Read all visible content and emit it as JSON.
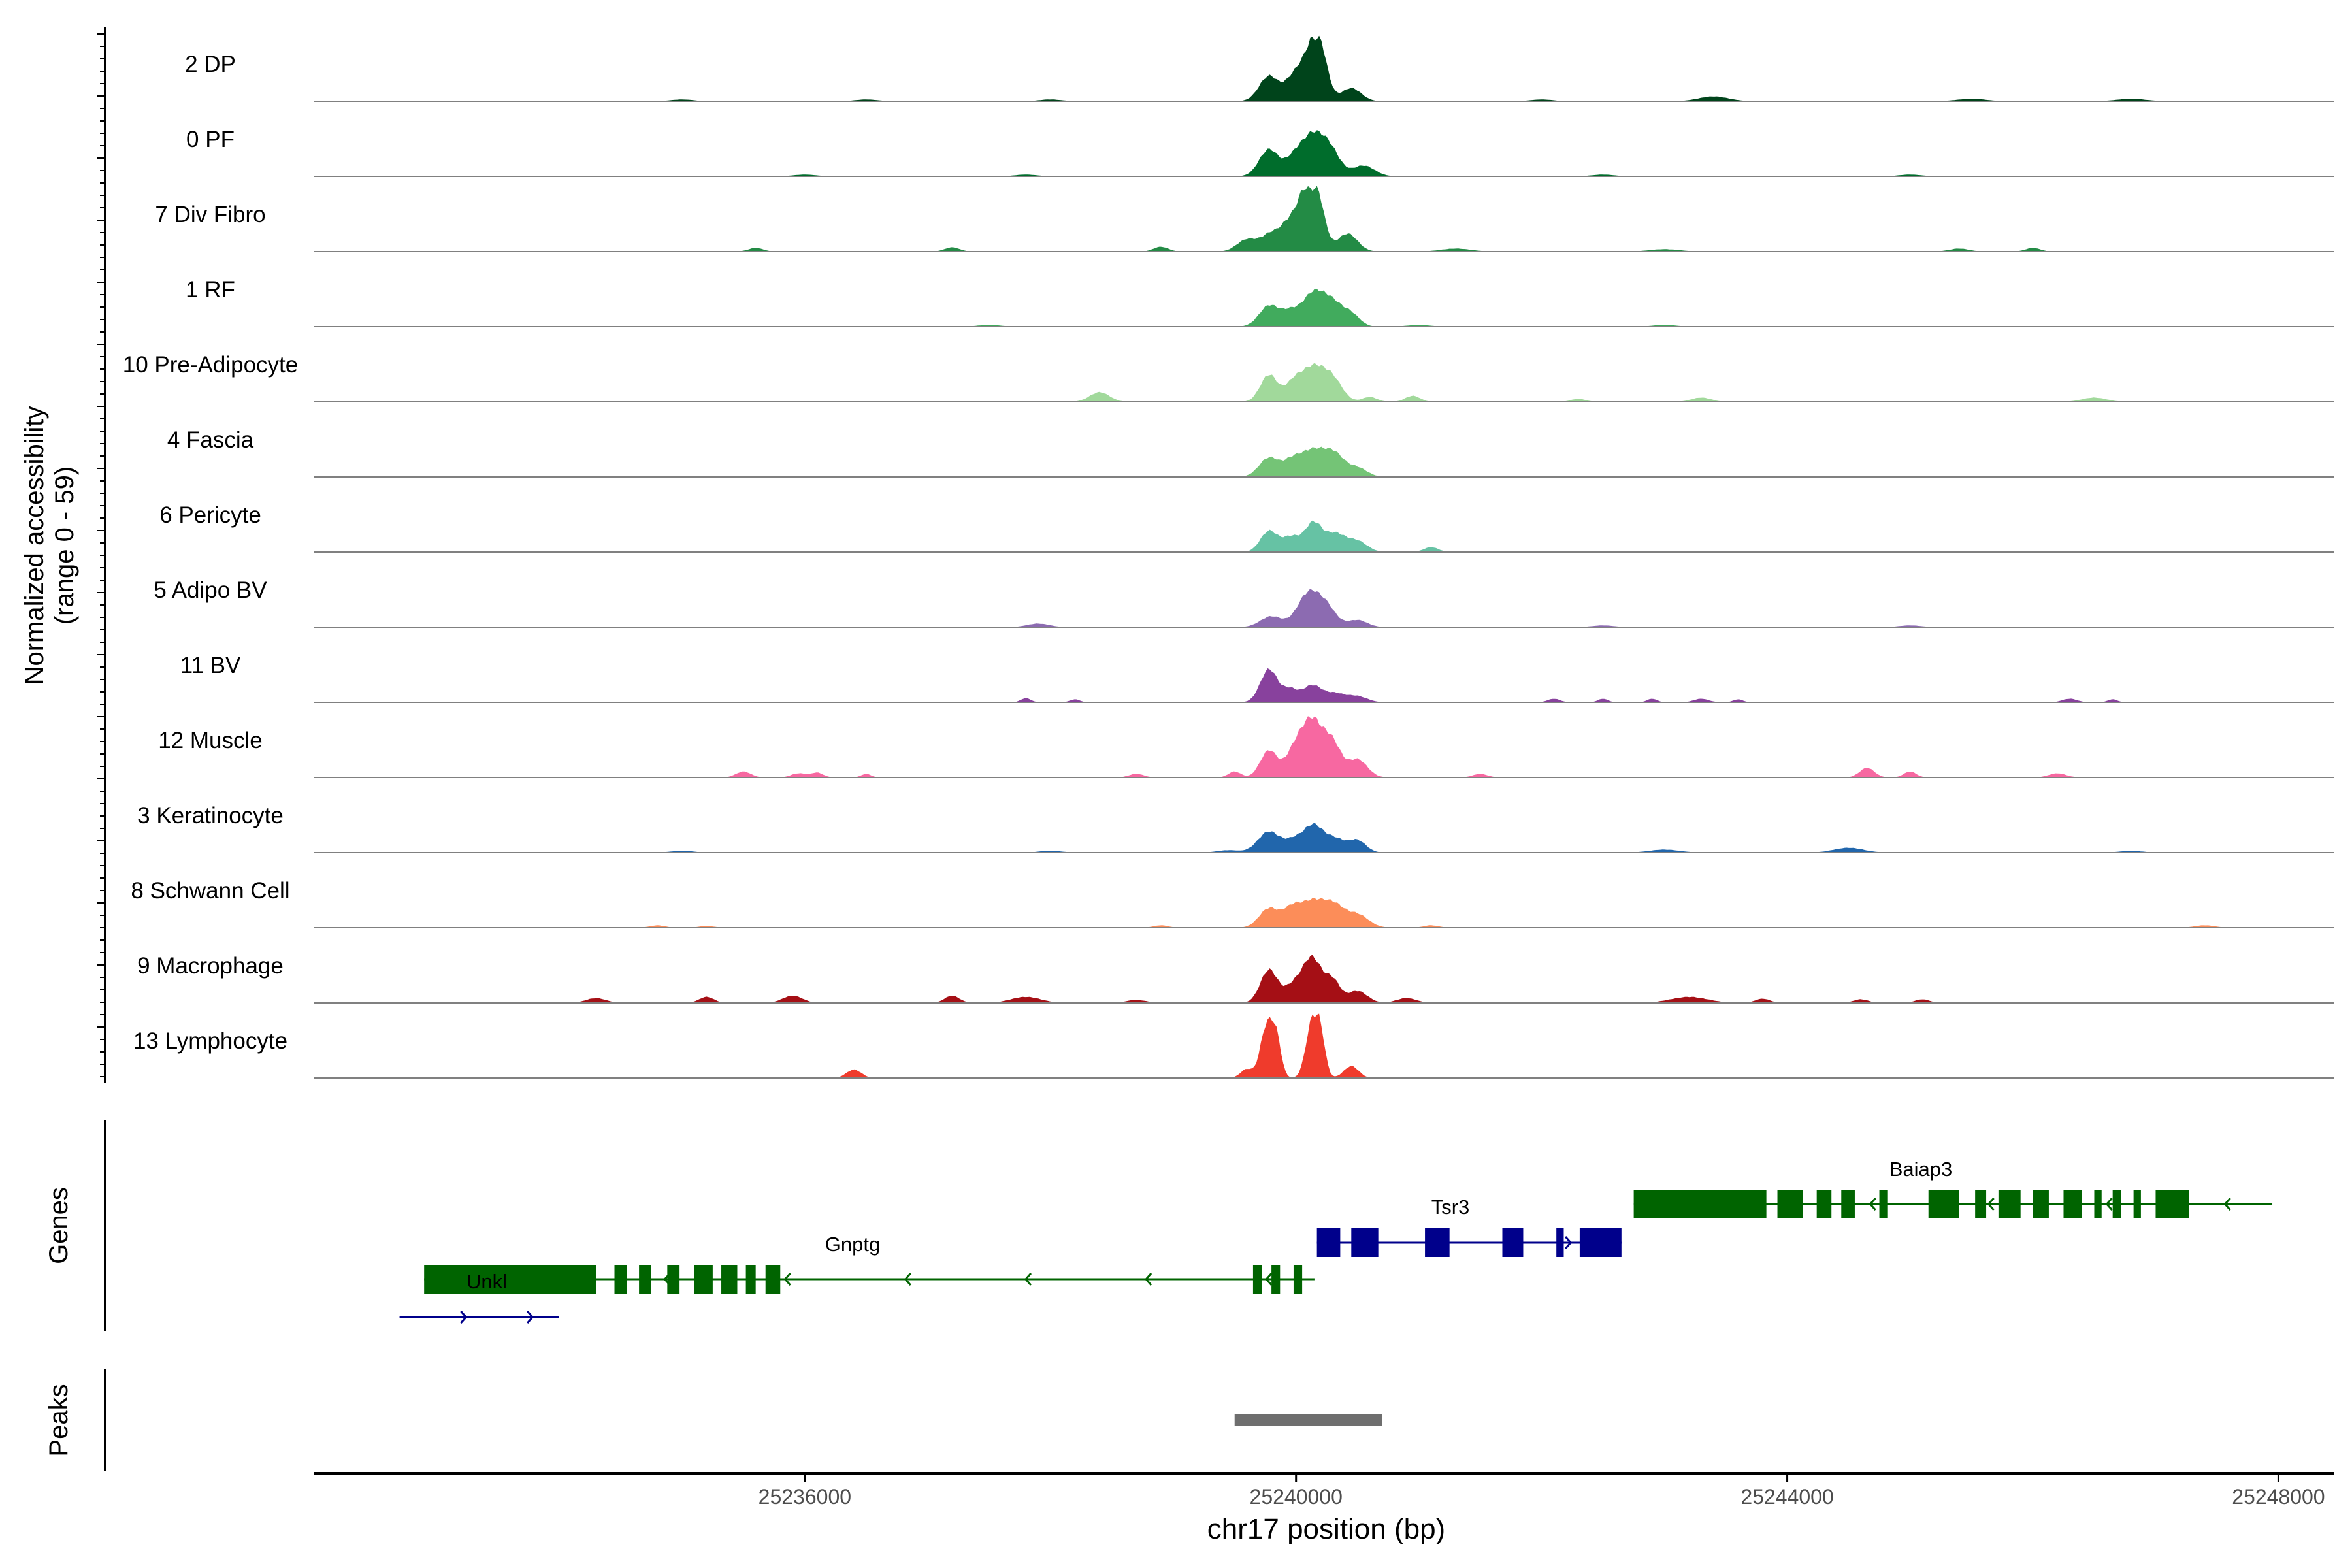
{
  "chart_data": {
    "type": "area",
    "ylabel": "Normalized accessibility",
    "yrange_label": "(range 0 - 59)",
    "xlabel": "chr17 position (bp)",
    "xlim": [
      25232000,
      25248450
    ],
    "xticks": [
      25236000,
      25240000,
      25244000,
      25248000
    ],
    "xtick_labels": [
      "25236000",
      "25240000",
      "25244000",
      "25248000"
    ],
    "track_labels": {
      "genes": "Genes",
      "peaks": "Peaks"
    },
    "tracks": [
      {
        "name": "2 DP",
        "color": "#00441b",
        "peaks": [
          [
            25235000,
            0.03,
            90
          ],
          [
            25236500,
            0.03,
            90
          ],
          [
            25238000,
            0.03,
            90
          ],
          [
            25239780,
            0.42,
            80
          ],
          [
            25239980,
            0.35,
            70
          ],
          [
            25240130,
            0.8,
            80
          ],
          [
            25240200,
            0.5,
            60
          ],
          [
            25240450,
            0.22,
            80
          ],
          [
            25242000,
            0.03,
            90
          ],
          [
            25243400,
            0.08,
            120
          ],
          [
            25245500,
            0.04,
            120
          ],
          [
            25246800,
            0.04,
            120
          ]
        ]
      },
      {
        "name": "0 PF",
        "color": "#006d2c",
        "peaks": [
          [
            25236000,
            0.03,
            90
          ],
          [
            25237800,
            0.03,
            90
          ],
          [
            25239780,
            0.45,
            80
          ],
          [
            25239980,
            0.25,
            70
          ],
          [
            25240130,
            0.65,
            90
          ],
          [
            25240280,
            0.4,
            80
          ],
          [
            25240550,
            0.18,
            90
          ],
          [
            25242500,
            0.03,
            90
          ],
          [
            25245000,
            0.03,
            90
          ]
        ]
      },
      {
        "name": "7 Div Fibro",
        "color": "#238b45",
        "peaks": [
          [
            25235600,
            0.06,
            60
          ],
          [
            25237200,
            0.07,
            60
          ],
          [
            25238900,
            0.08,
            60
          ],
          [
            25239600,
            0.2,
            80
          ],
          [
            25239800,
            0.3,
            80
          ],
          [
            25239930,
            0.3,
            60
          ],
          [
            25240080,
            1.0,
            80
          ],
          [
            25240180,
            0.6,
            60
          ],
          [
            25240420,
            0.3,
            80
          ],
          [
            25241300,
            0.05,
            120
          ],
          [
            25243000,
            0.04,
            120
          ],
          [
            25245400,
            0.05,
            80
          ],
          [
            25246000,
            0.06,
            60
          ]
        ]
      },
      {
        "name": "1 RF",
        "color": "#41ab5d",
        "peaks": [
          [
            25237500,
            0.03,
            90
          ],
          [
            25239780,
            0.35,
            80
          ],
          [
            25239950,
            0.22,
            70
          ],
          [
            25240140,
            0.55,
            90
          ],
          [
            25240300,
            0.35,
            80
          ],
          [
            25240450,
            0.2,
            70
          ],
          [
            25241000,
            0.03,
            90
          ],
          [
            25243000,
            0.03,
            90
          ]
        ]
      },
      {
        "name": "10 Pre-Adipocyte",
        "color": "#a1d99b",
        "peaks": [
          [
            25238400,
            0.16,
            80
          ],
          [
            25239780,
            0.45,
            70
          ],
          [
            25239980,
            0.3,
            70
          ],
          [
            25240140,
            0.55,
            90
          ],
          [
            25240300,
            0.35,
            80
          ],
          [
            25240600,
            0.08,
            60
          ],
          [
            25240950,
            0.1,
            60
          ],
          [
            25242300,
            0.05,
            60
          ],
          [
            25243300,
            0.07,
            80
          ],
          [
            25246500,
            0.07,
            100
          ]
        ]
      },
      {
        "name": "4 Fascia",
        "color": "#74c476",
        "peaks": [
          [
            25235800,
            0.02,
            90
          ],
          [
            25239780,
            0.32,
            80
          ],
          [
            25239960,
            0.2,
            70
          ],
          [
            25240140,
            0.45,
            110
          ],
          [
            25240320,
            0.3,
            80
          ],
          [
            25240500,
            0.15,
            80
          ],
          [
            25242000,
            0.02,
            90
          ]
        ]
      },
      {
        "name": "6 Pericyte",
        "color": "#66c2a4",
        "peaks": [
          [
            25234800,
            0.02,
            90
          ],
          [
            25239780,
            0.35,
            70
          ],
          [
            25239960,
            0.25,
            70
          ],
          [
            25240140,
            0.48,
            70
          ],
          [
            25240320,
            0.3,
            80
          ],
          [
            25240500,
            0.18,
            80
          ],
          [
            25241100,
            0.08,
            60
          ],
          [
            25243000,
            0.02,
            90
          ]
        ]
      },
      {
        "name": "5 Adipo BV",
        "color": "#8c6bb1",
        "peaks": [
          [
            25237900,
            0.06,
            90
          ],
          [
            25239800,
            0.18,
            90
          ],
          [
            25240100,
            0.55,
            90
          ],
          [
            25240250,
            0.3,
            80
          ],
          [
            25240500,
            0.12,
            80
          ],
          [
            25242500,
            0.03,
            90
          ],
          [
            25245000,
            0.03,
            90
          ]
        ]
      },
      {
        "name": "11 BV",
        "color": "#88419d",
        "peaks": [
          [
            25237800,
            0.07,
            40
          ],
          [
            25238200,
            0.05,
            40
          ],
          [
            25239780,
            0.55,
            70
          ],
          [
            25239950,
            0.2,
            60
          ],
          [
            25240130,
            0.28,
            80
          ],
          [
            25240320,
            0.14,
            80
          ],
          [
            25240500,
            0.1,
            80
          ],
          [
            25242100,
            0.06,
            50
          ],
          [
            25242500,
            0.06,
            40
          ],
          [
            25242900,
            0.06,
            40
          ],
          [
            25243300,
            0.06,
            60
          ],
          [
            25243600,
            0.05,
            40
          ],
          [
            25246300,
            0.06,
            60
          ],
          [
            25246650,
            0.05,
            40
          ]
        ]
      },
      {
        "name": "12 Muscle",
        "color": "#f768a1",
        "peaks": [
          [
            25235500,
            0.1,
            60
          ],
          [
            25235950,
            0.07,
            60
          ],
          [
            25236100,
            0.08,
            50
          ],
          [
            25236500,
            0.06,
            40
          ],
          [
            25238700,
            0.06,
            60
          ],
          [
            25239500,
            0.1,
            50
          ],
          [
            25239780,
            0.45,
            70
          ],
          [
            25239980,
            0.35,
            70
          ],
          [
            25240130,
            0.95,
            90
          ],
          [
            25240300,
            0.5,
            70
          ],
          [
            25240500,
            0.3,
            80
          ],
          [
            25241500,
            0.06,
            60
          ],
          [
            25244650,
            0.16,
            60
          ],
          [
            25245000,
            0.1,
            50
          ],
          [
            25246200,
            0.07,
            70
          ]
        ]
      },
      {
        "name": "3 Keratinocyte",
        "color": "#2166ac",
        "peaks": [
          [
            25235000,
            0.03,
            90
          ],
          [
            25238000,
            0.03,
            90
          ],
          [
            25239450,
            0.04,
            90
          ],
          [
            25239780,
            0.35,
            90
          ],
          [
            25239980,
            0.18,
            70
          ],
          [
            25240140,
            0.45,
            80
          ],
          [
            25240320,
            0.22,
            80
          ],
          [
            25240500,
            0.2,
            70
          ],
          [
            25243000,
            0.05,
            120
          ],
          [
            25244500,
            0.08,
            120
          ],
          [
            25246800,
            0.03,
            90
          ]
        ]
      },
      {
        "name": "8 Schwann Cell",
        "color": "#fc8d59",
        "peaks": [
          [
            25234800,
            0.04,
            60
          ],
          [
            25235200,
            0.03,
            60
          ],
          [
            25238900,
            0.04,
            60
          ],
          [
            25239780,
            0.32,
            80
          ],
          [
            25239960,
            0.25,
            70
          ],
          [
            25240140,
            0.45,
            110
          ],
          [
            25240320,
            0.28,
            80
          ],
          [
            25240500,
            0.22,
            90
          ],
          [
            25241100,
            0.04,
            60
          ],
          [
            25247400,
            0.04,
            80
          ]
        ]
      },
      {
        "name": "9 Macrophage",
        "color": "#a50f15",
        "peaks": [
          [
            25234300,
            0.08,
            80
          ],
          [
            25235200,
            0.1,
            60
          ],
          [
            25235900,
            0.12,
            80
          ],
          [
            25237200,
            0.12,
            60
          ],
          [
            25237800,
            0.1,
            120
          ],
          [
            25238700,
            0.05,
            80
          ],
          [
            25239780,
            0.55,
            70
          ],
          [
            25239970,
            0.25,
            70
          ],
          [
            25240130,
            0.75,
            80
          ],
          [
            25240300,
            0.35,
            60
          ],
          [
            25240500,
            0.2,
            80
          ],
          [
            25240900,
            0.08,
            80
          ],
          [
            25243200,
            0.1,
            150
          ],
          [
            25243800,
            0.07,
            60
          ],
          [
            25244600,
            0.06,
            60
          ],
          [
            25245100,
            0.06,
            60
          ]
        ]
      },
      {
        "name": "13 Lymphocyte",
        "color": "#ef3b2c",
        "peaks": [
          [
            25236400,
            0.14,
            60
          ],
          [
            25239600,
            0.15,
            50
          ],
          [
            25239760,
            0.85,
            50
          ],
          [
            25239840,
            0.6,
            40
          ],
          [
            25240130,
            0.9,
            50
          ],
          [
            25240200,
            0.6,
            40
          ],
          [
            25240450,
            0.2,
            60
          ]
        ]
      }
    ],
    "genes": [
      {
        "name": "Gnptg",
        "strand": "-",
        "color": "#006400",
        "start": 25232900,
        "end": 25240150,
        "exons": [
          [
            25232900,
            25234300
          ],
          [
            25234450,
            25234550
          ],
          [
            25234650,
            25234750
          ],
          [
            25234880,
            25234980
          ],
          [
            25235100,
            25235250
          ],
          [
            25235320,
            25235450
          ],
          [
            25235520,
            25235600
          ],
          [
            25235680,
            25235800
          ],
          [
            25239650,
            25239720
          ],
          [
            25239800,
            25239870
          ],
          [
            25239980,
            25240050
          ]
        ]
      },
      {
        "name": "Unkl",
        "strand": "+",
        "color": "#00008b",
        "start": 25232700,
        "end": 25234000,
        "exons": []
      },
      {
        "name": "Tsr3",
        "strand": "+",
        "color": "#00008b",
        "start": 25240170,
        "end": 25242650,
        "exons": [
          [
            25240170,
            25240360
          ],
          [
            25240450,
            25240670
          ],
          [
            25241050,
            25241250
          ],
          [
            25241680,
            25241850
          ],
          [
            25242120,
            25242180
          ],
          [
            25242310,
            25242650
          ]
        ]
      },
      {
        "name": "Baiap3",
        "strand": "-",
        "color": "#006400",
        "start": 25242750,
        "end": 25247950,
        "exons": [
          [
            25242750,
            25243830
          ],
          [
            25243920,
            25244130
          ],
          [
            25244240,
            25244360
          ],
          [
            25244440,
            25244550
          ],
          [
            25244750,
            25244820
          ],
          [
            25245150,
            25245400
          ],
          [
            25245530,
            25245620
          ],
          [
            25245720,
            25245900
          ],
          [
            25246000,
            25246130
          ],
          [
            25246250,
            25246400
          ],
          [
            25246500,
            25246560
          ],
          [
            25246650,
            25246720
          ],
          [
            25246820,
            25246880
          ],
          [
            25247000,
            25247270
          ]
        ]
      }
    ],
    "peaks_track": [
      [
        25239500,
        25240700
      ]
    ]
  }
}
